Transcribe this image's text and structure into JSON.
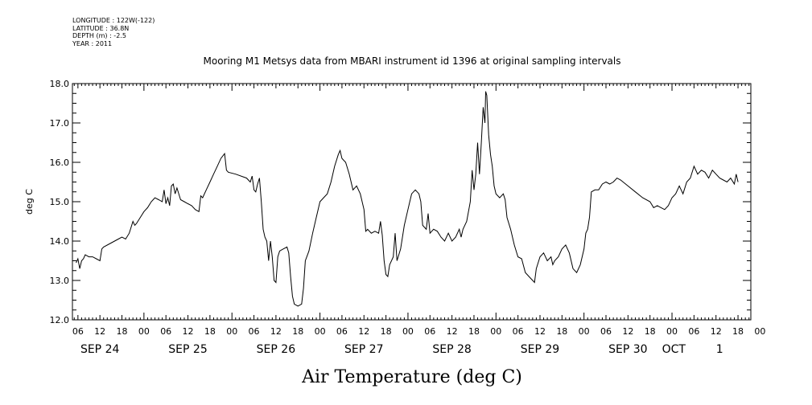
{
  "header": {
    "lines": [
      "LONGITUDE : 122W(-122)",
      "LATITUDE : 36.8N",
      "DEPTH (m) : -2.5",
      "YEAR : 2011"
    ]
  },
  "chart_data": {
    "type": "line",
    "title": "Mooring M1 Metsys data from MBARI instrument id 1396 at original sampling intervals",
    "xlabel": "Air Temperature (deg C)",
    "ylabel": "deg C",
    "ylim": [
      12.0,
      18.0
    ],
    "yticks": [
      "12.0",
      "13.0",
      "14.0",
      "15.0",
      "16.0",
      "17.0",
      "18.0"
    ],
    "xlim_hours_label": "hours since SEP 24 00:00",
    "hour_ticks": [
      {
        "h": 6,
        "label": "06"
      },
      {
        "h": 12,
        "label": "12"
      },
      {
        "h": 18,
        "label": "18"
      },
      {
        "h": 24,
        "label": "00"
      },
      {
        "h": 30,
        "label": "06"
      },
      {
        "h": 36,
        "label": "12"
      },
      {
        "h": 42,
        "label": "18"
      },
      {
        "h": 48,
        "label": "00"
      },
      {
        "h": 54,
        "label": "06"
      },
      {
        "h": 60,
        "label": "12"
      },
      {
        "h": 66,
        "label": "18"
      },
      {
        "h": 72,
        "label": "00"
      },
      {
        "h": 78,
        "label": "06"
      },
      {
        "h": 84,
        "label": "12"
      },
      {
        "h": 90,
        "label": "18"
      },
      {
        "h": 96,
        "label": "00"
      },
      {
        "h": 102,
        "label": "06"
      },
      {
        "h": 108,
        "label": "12"
      },
      {
        "h": 114,
        "label": "18"
      },
      {
        "h": 120,
        "label": "00"
      },
      {
        "h": 126,
        "label": "06"
      },
      {
        "h": 132,
        "label": "12"
      },
      {
        "h": 138,
        "label": "18"
      },
      {
        "h": 144,
        "label": "00"
      },
      {
        "h": 150,
        "label": "06"
      },
      {
        "h": 156,
        "label": "12"
      },
      {
        "h": 162,
        "label": "18"
      },
      {
        "h": 168,
        "label": "00"
      },
      {
        "h": 174,
        "label": "06"
      },
      {
        "h": 180,
        "label": "12"
      },
      {
        "h": 186,
        "label": "18"
      },
      {
        "h": 192,
        "label": "00"
      }
    ],
    "date_labels": [
      {
        "h": 12,
        "label": "SEP 24"
      },
      {
        "h": 36,
        "label": "SEP 25"
      },
      {
        "h": 60,
        "label": "SEP 26"
      },
      {
        "h": 84,
        "label": "SEP 27"
      },
      {
        "h": 108,
        "label": "SEP 28"
      },
      {
        "h": 132,
        "label": "SEP 29"
      },
      {
        "h": 156,
        "label": "SEP 30"
      },
      {
        "h": 168.5,
        "label": "OCT"
      },
      {
        "h": 181,
        "label": "1"
      }
    ],
    "series": [
      {
        "points": [
          [
            5.5,
            13.45
          ],
          [
            6.0,
            13.55
          ],
          [
            6.5,
            13.3
          ],
          [
            7.0,
            13.5
          ],
          [
            7.5,
            13.55
          ],
          [
            8.0,
            13.65
          ],
          [
            9.0,
            13.6
          ],
          [
            10.0,
            13.6
          ],
          [
            11.0,
            13.55
          ],
          [
            12.0,
            13.5
          ],
          [
            12.5,
            13.8
          ],
          [
            13.0,
            13.85
          ],
          [
            15.0,
            13.95
          ],
          [
            17.0,
            14.05
          ],
          [
            18.0,
            14.1
          ],
          [
            19.0,
            14.05
          ],
          [
            20.0,
            14.2
          ],
          [
            21.0,
            14.5
          ],
          [
            21.5,
            14.4
          ],
          [
            22.0,
            14.45
          ],
          [
            23.0,
            14.6
          ],
          [
            24.0,
            14.75
          ],
          [
            25.0,
            14.85
          ],
          [
            26.0,
            15.0
          ],
          [
            27.0,
            15.1
          ],
          [
            28.0,
            15.05
          ],
          [
            29.0,
            15.0
          ],
          [
            29.5,
            15.3
          ],
          [
            30.0,
            14.95
          ],
          [
            30.5,
            15.1
          ],
          [
            31.0,
            14.9
          ],
          [
            31.5,
            15.4
          ],
          [
            32.0,
            15.45
          ],
          [
            32.5,
            15.2
          ],
          [
            33.0,
            15.35
          ],
          [
            34.0,
            15.05
          ],
          [
            35.0,
            15.0
          ],
          [
            36.0,
            14.95
          ],
          [
            37.0,
            14.9
          ],
          [
            38.0,
            14.8
          ],
          [
            39.0,
            14.75
          ],
          [
            39.5,
            15.15
          ],
          [
            40.0,
            15.1
          ],
          [
            41.0,
            15.3
          ],
          [
            42.0,
            15.5
          ],
          [
            43.0,
            15.7
          ],
          [
            44.0,
            15.9
          ],
          [
            45.0,
            16.1
          ],
          [
            46.0,
            16.22
          ],
          [
            46.5,
            15.8
          ],
          [
            47.0,
            15.75
          ],
          [
            49.0,
            15.7
          ],
          [
            52.0,
            15.6
          ],
          [
            53.0,
            15.5
          ],
          [
            53.5,
            15.65
          ],
          [
            54.0,
            15.3
          ],
          [
            54.5,
            15.25
          ],
          [
            55.0,
            15.45
          ],
          [
            55.5,
            15.6
          ],
          [
            56.0,
            15.0
          ],
          [
            56.5,
            14.3
          ],
          [
            57.0,
            14.1
          ],
          [
            57.5,
            14.0
          ],
          [
            58.0,
            13.5
          ],
          [
            58.5,
            14.0
          ],
          [
            59.0,
            13.6
          ],
          [
            59.5,
            13.0
          ],
          [
            60.0,
            12.95
          ],
          [
            60.5,
            13.6
          ],
          [
            61.0,
            13.75
          ],
          [
            62.0,
            13.8
          ],
          [
            63.0,
            13.85
          ],
          [
            63.5,
            13.7
          ],
          [
            64.0,
            13.1
          ],
          [
            64.5,
            12.6
          ],
          [
            65.0,
            12.4
          ],
          [
            66.0,
            12.35
          ],
          [
            67.0,
            12.4
          ],
          [
            67.5,
            12.8
          ],
          [
            68.0,
            13.5
          ],
          [
            69.0,
            13.75
          ],
          [
            70.0,
            14.2
          ],
          [
            71.0,
            14.6
          ],
          [
            72.0,
            15.0
          ],
          [
            73.0,
            15.1
          ],
          [
            74.0,
            15.2
          ],
          [
            75.0,
            15.5
          ],
          [
            76.0,
            15.9
          ],
          [
            77.0,
            16.2
          ],
          [
            77.5,
            16.3
          ],
          [
            78.0,
            16.1
          ],
          [
            79.0,
            16.0
          ],
          [
            80.0,
            15.7
          ],
          [
            81.0,
            15.3
          ],
          [
            82.0,
            15.4
          ],
          [
            83.0,
            15.2
          ],
          [
            84.0,
            14.8
          ],
          [
            84.5,
            14.25
          ],
          [
            85.0,
            14.3
          ],
          [
            86.0,
            14.2
          ],
          [
            87.0,
            14.25
          ],
          [
            88.0,
            14.2
          ],
          [
            88.5,
            14.5
          ],
          [
            89.0,
            14.15
          ],
          [
            89.5,
            13.5
          ],
          [
            90.0,
            13.15
          ],
          [
            90.5,
            13.1
          ],
          [
            91.0,
            13.4
          ],
          [
            92.0,
            13.6
          ],
          [
            92.5,
            14.2
          ],
          [
            93.0,
            13.5
          ],
          [
            94.0,
            13.8
          ],
          [
            95.0,
            14.4
          ],
          [
            96.0,
            14.8
          ],
          [
            97.0,
            15.2
          ],
          [
            98.0,
            15.3
          ],
          [
            99.0,
            15.2
          ],
          [
            99.5,
            15.0
          ],
          [
            100.0,
            14.4
          ],
          [
            101.0,
            14.3
          ],
          [
            101.5,
            14.7
          ],
          [
            102.0,
            14.2
          ],
          [
            103.0,
            14.3
          ],
          [
            104.0,
            14.25
          ],
          [
            105.0,
            14.1
          ],
          [
            106.0,
            14.0
          ],
          [
            107.0,
            14.2
          ],
          [
            108.0,
            14.0
          ],
          [
            109.0,
            14.1
          ],
          [
            110.0,
            14.3
          ],
          [
            110.5,
            14.1
          ],
          [
            111.0,
            14.3
          ],
          [
            112.0,
            14.5
          ],
          [
            113.0,
            15.0
          ],
          [
            113.5,
            15.8
          ],
          [
            114.0,
            15.3
          ],
          [
            114.5,
            15.7
          ],
          [
            115.0,
            16.5
          ],
          [
            115.5,
            15.7
          ],
          [
            116.0,
            16.5
          ],
          [
            116.5,
            17.4
          ],
          [
            117.0,
            17.0
          ],
          [
            117.2,
            17.8
          ],
          [
            117.5,
            17.7
          ],
          [
            118.0,
            16.7
          ],
          [
            118.5,
            16.2
          ],
          [
            119.0,
            15.9
          ],
          [
            119.5,
            15.4
          ],
          [
            120.0,
            15.2
          ],
          [
            121.0,
            15.1
          ],
          [
            122.0,
            15.2
          ],
          [
            122.5,
            15.05
          ],
          [
            123.0,
            14.6
          ],
          [
            124.0,
            14.3
          ],
          [
            125.0,
            13.9
          ],
          [
            126.0,
            13.6
          ],
          [
            127.0,
            13.55
          ],
          [
            128.0,
            13.2
          ],
          [
            129.0,
            13.1
          ],
          [
            130.0,
            13.0
          ],
          [
            130.5,
            12.95
          ],
          [
            131.0,
            13.3
          ],
          [
            132.0,
            13.6
          ],
          [
            133.0,
            13.7
          ],
          [
            134.0,
            13.5
          ],
          [
            135.0,
            13.6
          ],
          [
            135.5,
            13.4
          ],
          [
            136.0,
            13.5
          ],
          [
            137.0,
            13.6
          ],
          [
            138.0,
            13.8
          ],
          [
            139.0,
            13.9
          ],
          [
            140.0,
            13.7
          ],
          [
            141.0,
            13.3
          ],
          [
            142.0,
            13.2
          ],
          [
            143.0,
            13.4
          ],
          [
            144.0,
            13.8
          ],
          [
            144.5,
            14.2
          ],
          [
            145.0,
            14.3
          ],
          [
            145.5,
            14.6
          ],
          [
            146.0,
            15.25
          ],
          [
            147.0,
            15.3
          ],
          [
            148.0,
            15.3
          ],
          [
            149.0,
            15.45
          ],
          [
            150.0,
            15.5
          ],
          [
            151.0,
            15.45
          ],
          [
            152.0,
            15.5
          ],
          [
            153.0,
            15.6
          ],
          [
            154.0,
            15.55
          ],
          [
            156.0,
            15.4
          ],
          [
            158.0,
            15.25
          ],
          [
            160.0,
            15.1
          ],
          [
            162.0,
            15.0
          ],
          [
            163.0,
            14.85
          ],
          [
            164.0,
            14.9
          ],
          [
            165.0,
            14.85
          ],
          [
            166.0,
            14.8
          ],
          [
            167.0,
            14.9
          ],
          [
            168.0,
            15.1
          ],
          [
            169.0,
            15.2
          ],
          [
            170.0,
            15.4
          ],
          [
            171.0,
            15.2
          ],
          [
            172.0,
            15.5
          ],
          [
            173.0,
            15.6
          ],
          [
            174.0,
            15.9
          ],
          [
            175.0,
            15.7
          ],
          [
            176.0,
            15.8
          ],
          [
            177.0,
            15.75
          ],
          [
            178.0,
            15.6
          ],
          [
            179.0,
            15.8
          ],
          [
            180.0,
            15.7
          ],
          [
            181.0,
            15.6
          ],
          [
            182.0,
            15.55
          ],
          [
            183.0,
            15.5
          ],
          [
            184.0,
            15.6
          ],
          [
            185.0,
            15.45
          ],
          [
            185.5,
            15.7
          ],
          [
            186.0,
            15.5
          ]
        ]
      }
    ]
  }
}
